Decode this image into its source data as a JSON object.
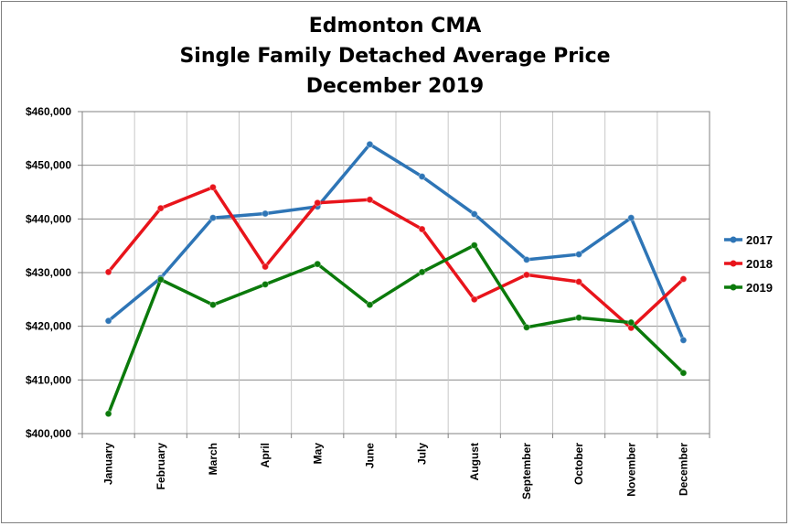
{
  "chart_data": {
    "type": "line",
    "title_lines": [
      "Edmonton CMA",
      "Single Family Detached Average Price",
      "December 2019"
    ],
    "categories": [
      "January",
      "February",
      "March",
      "April",
      "May",
      "June",
      "July",
      "August",
      "September",
      "October",
      "November",
      "December"
    ],
    "ylim": [
      400000,
      460000
    ],
    "yticks": [
      400000,
      410000,
      420000,
      430000,
      440000,
      450000,
      460000
    ],
    "ytick_labels": [
      "$400,000",
      "$410,000",
      "$420,000",
      "$430,000",
      "$440,000",
      "$450,000",
      "$460,000"
    ],
    "grid": true,
    "legend_position": "right",
    "series": [
      {
        "name": "2017",
        "color": "#2e75b6",
        "values": [
          421000,
          429000,
          440200,
          441000,
          442300,
          453900,
          447900,
          440900,
          432400,
          433400,
          440200,
          417400
        ]
      },
      {
        "name": "2018",
        "color": "#e8141b",
        "values": [
          430100,
          442000,
          445900,
          431100,
          443000,
          443600,
          438100,
          425000,
          429600,
          428300,
          419700,
          428800
        ]
      },
      {
        "name": "2019",
        "color": "#0b7a0b",
        "values": [
          403700,
          428700,
          424000,
          427800,
          431600,
          424000,
          430100,
          435100,
          419800,
          421600,
          420700,
          411300
        ]
      }
    ]
  }
}
